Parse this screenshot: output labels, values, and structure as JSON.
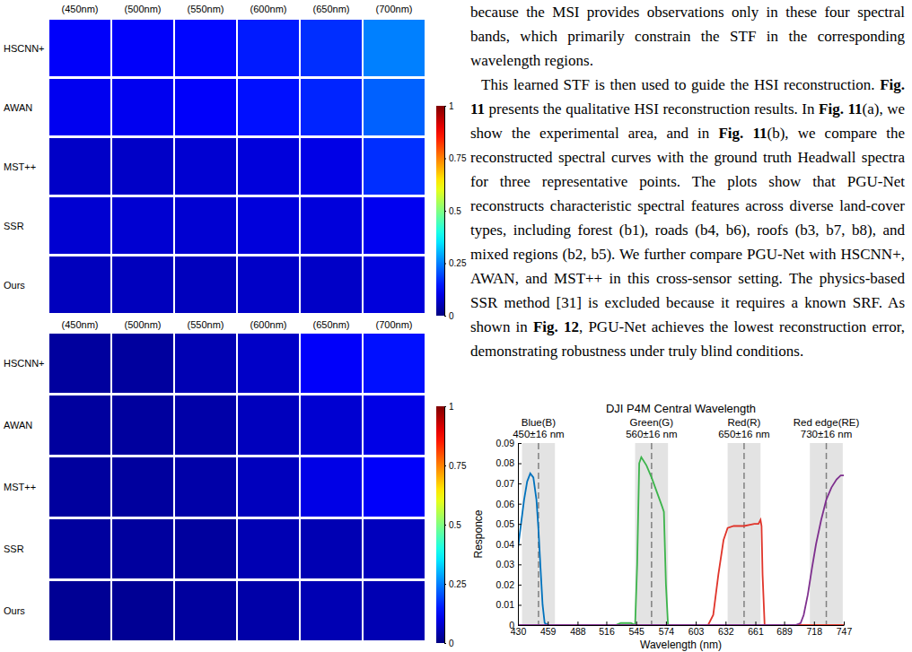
{
  "error_maps": [
    {
      "wavelengths": [
        "(450nm)",
        "(500nm)",
        "(550nm)",
        "(600nm)",
        "(650nm)",
        "(700nm)"
      ],
      "methods": [
        "HSCNN+",
        "AWAN",
        "MST++",
        "SSR",
        "Ours"
      ],
      "cells": [
        [
          0.12,
          0.12,
          0.13,
          0.15,
          0.17,
          0.25
        ],
        [
          0.11,
          0.11,
          0.12,
          0.14,
          0.16,
          0.22
        ],
        [
          0.07,
          0.07,
          0.08,
          0.09,
          0.1,
          0.17
        ],
        [
          0.08,
          0.08,
          0.08,
          0.09,
          0.09,
          0.11
        ],
        [
          0.06,
          0.06,
          0.06,
          0.07,
          0.07,
          0.09
        ]
      ],
      "colorbar_range": [
        0,
        1
      ],
      "colorbar_ticks": [
        0,
        0.25,
        0.5,
        0.75,
        1
      ]
    },
    {
      "wavelengths": [
        "(450nm)",
        "(500nm)",
        "(550nm)",
        "(600nm)",
        "(650nm)",
        "(700nm)"
      ],
      "methods": [
        "HSCNN+",
        "AWAN",
        "MST++",
        "SSR",
        "Ours"
      ],
      "cells": [
        [
          0.03,
          0.03,
          0.05,
          0.07,
          0.12,
          0.14
        ],
        [
          0.03,
          0.03,
          0.04,
          0.06,
          0.08,
          0.1
        ],
        [
          0.03,
          0.03,
          0.04,
          0.06,
          0.1,
          0.12
        ],
        [
          0.03,
          0.03,
          0.03,
          0.05,
          0.05,
          0.06
        ],
        [
          0.02,
          0.02,
          0.03,
          0.04,
          0.05,
          0.05
        ]
      ],
      "colorbar_range": [
        0,
        1
      ],
      "colorbar_ticks": [
        0,
        0.25,
        0.5,
        0.75,
        1
      ]
    }
  ],
  "paragraphs": [
    [
      {
        "text": "because the MSI provides observations only in these four spectral bands, which primarily constrain the STF in the corresponding wavelength regions.",
        "bold": false
      }
    ],
    [
      {
        "text": "This learned STF is then used to guide the HSI reconstruction. ",
        "bold": false
      },
      {
        "text": "Fig. 11",
        "bold": true
      },
      {
        "text": " presents the qualitative HSI reconstruction results. In ",
        "bold": false
      },
      {
        "text": "Fig. 11",
        "bold": true
      },
      {
        "text": "(a), we show the experimental area, and in ",
        "bold": false
      },
      {
        "text": "Fig. 11",
        "bold": true
      },
      {
        "text": "(b), we compare the reconstructed spectral curves with the ground truth Headwall spectra for three representative points. The plots show that PGU-Net reconstructs characteristic spectral features across diverse land-cover types, including forest (b1), roads (b4, b6), roofs (b3, b7, b8), and mixed regions (b2, b5). We further compare PGU-Net with HSCNN+, AWAN, and MST++ in this cross-sensor setting. The physics-based SSR method [31] is excluded because it requires a known SRF. As shown in ",
        "bold": false
      },
      {
        "text": "Fig. 12",
        "bold": true
      },
      {
        "text": ", PGU-Net achieves the lowest reconstruction error, demonstrating robustness under truly blind conditions.",
        "bold": false
      }
    ]
  ],
  "chart_data": {
    "type": "line",
    "title": "DJI P4M Central Wavelength",
    "x_label": "Wavelength (nm)",
    "y_label": "Responce",
    "xlim": [
      430,
      747
    ],
    "ylim": [
      0,
      0.09
    ],
    "xticks": [
      430,
      459,
      488,
      516,
      545,
      574,
      603,
      632,
      661,
      689,
      718,
      747
    ],
    "yticks": [
      0,
      0.01,
      0.02,
      0.03,
      0.04,
      0.05,
      0.06,
      0.07,
      0.08,
      0.09
    ],
    "bands": [
      {
        "center": 450,
        "half_width": 16,
        "label": "450±16 nm"
      },
      {
        "center": 560,
        "half_width": 16,
        "label": "560±16 nm"
      },
      {
        "center": 650,
        "half_width": 16,
        "label": "650±16 nm"
      },
      {
        "center": 730,
        "half_width": 16,
        "label": "730±16 nm"
      }
    ],
    "series": [
      {
        "name": "Blue(B)",
        "color": "#0072bd",
        "x": [
          430,
          433,
          436,
          439,
          442,
          445,
          448,
          450,
          452,
          454,
          456,
          460,
          747
        ],
        "values": [
          0.038,
          0.05,
          0.062,
          0.071,
          0.075,
          0.073,
          0.062,
          0.047,
          0.028,
          0.01,
          0.001,
          0,
          0
        ]
      },
      {
        "name": "Green(G)",
        "color": "#3cb44b",
        "x": [
          430,
          525,
          530,
          535,
          540,
          544,
          546,
          548,
          550,
          555,
          560,
          565,
          570,
          572,
          574,
          576,
          747
        ],
        "values": [
          0,
          0,
          0.001,
          0.001,
          0.001,
          0,
          0.03,
          0.08,
          0.083,
          0.079,
          0.073,
          0.066,
          0.059,
          0.056,
          0.02,
          0,
          0
        ]
      },
      {
        "name": "Red(R)",
        "color": "#e0352b",
        "x": [
          430,
          615,
          620,
          625,
          630,
          634,
          640,
          650,
          660,
          664,
          666,
          667,
          668,
          670,
          747
        ],
        "values": [
          0,
          0,
          0.005,
          0.025,
          0.042,
          0.048,
          0.049,
          0.049,
          0.05,
          0.05,
          0.052,
          0.049,
          0.025,
          0,
          0
        ]
      },
      {
        "name": "Red edge(RE)",
        "color": "#7e2f8e",
        "x": [
          430,
          700,
          705,
          708,
          712,
          716,
          720,
          725,
          730,
          735,
          740,
          744,
          747
        ],
        "values": [
          0,
          0,
          0.001,
          0.005,
          0.015,
          0.028,
          0.04,
          0.052,
          0.062,
          0.068,
          0.072,
          0.074,
          0.074
        ]
      }
    ]
  }
}
